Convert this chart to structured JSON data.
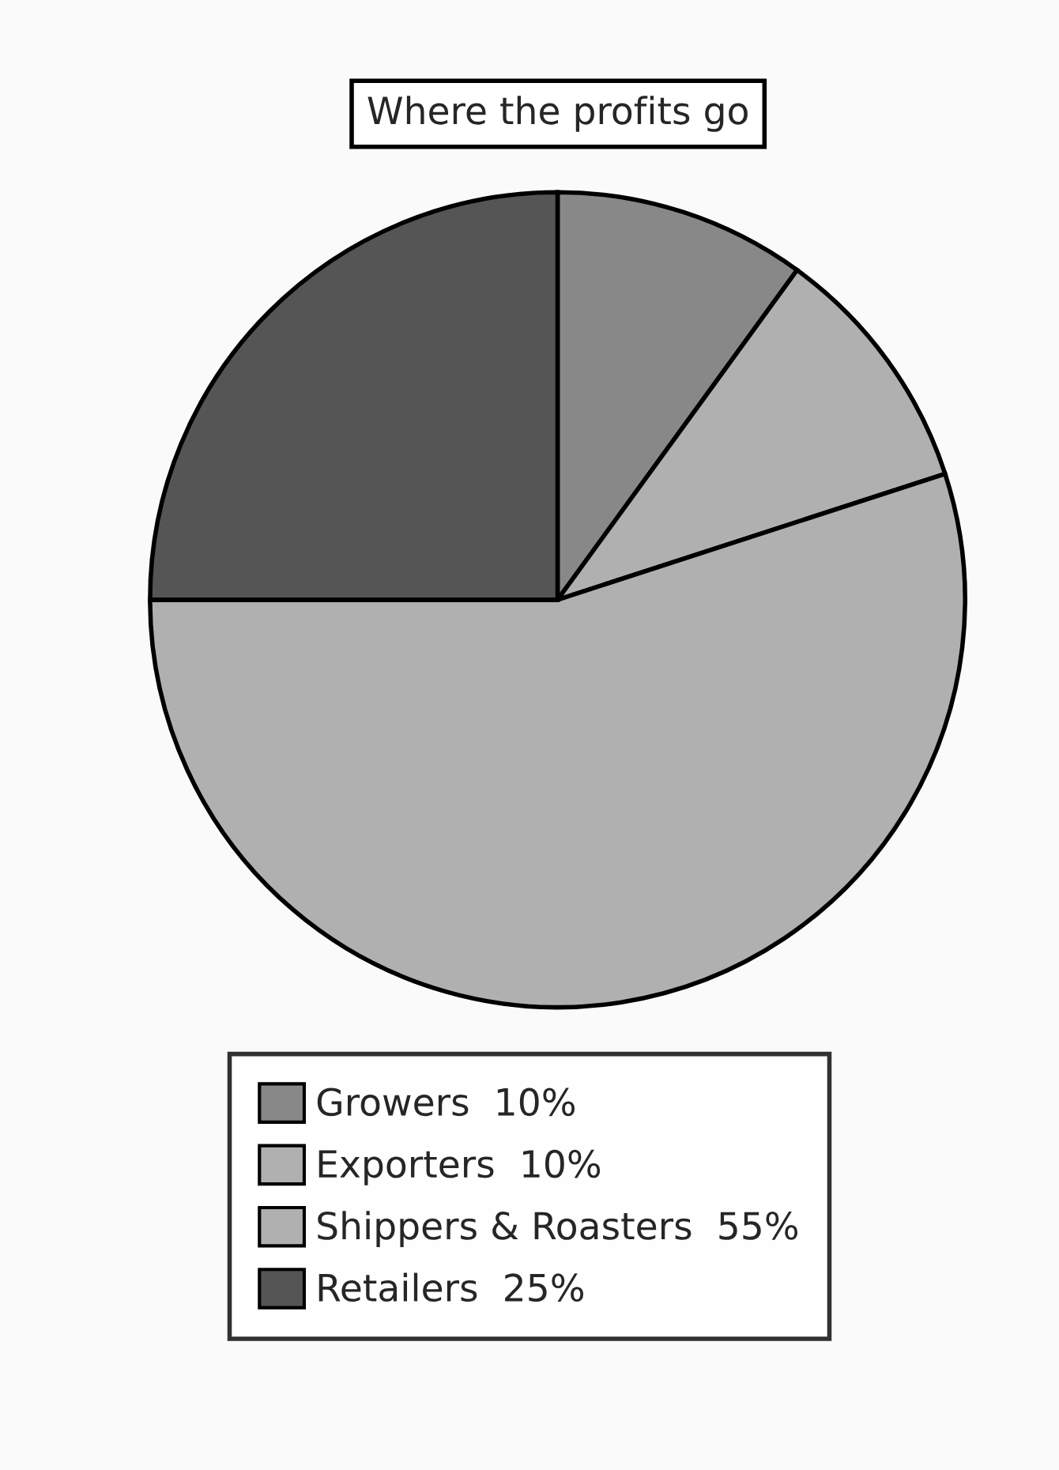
{
  "chart_data": {
    "type": "pie",
    "title": "Where the profits go",
    "categories": [
      "Growers",
      "Exporters",
      "Shippers & Roasters",
      "Retailers"
    ],
    "values": [
      10,
      10,
      55,
      25
    ],
    "value_labels": [
      "10%",
      "10%",
      "55%",
      "25%"
    ],
    "colors": [
      "#888888",
      "#b0b0b0",
      "#b0b0b0",
      "#555555"
    ],
    "legend": "bottom"
  }
}
